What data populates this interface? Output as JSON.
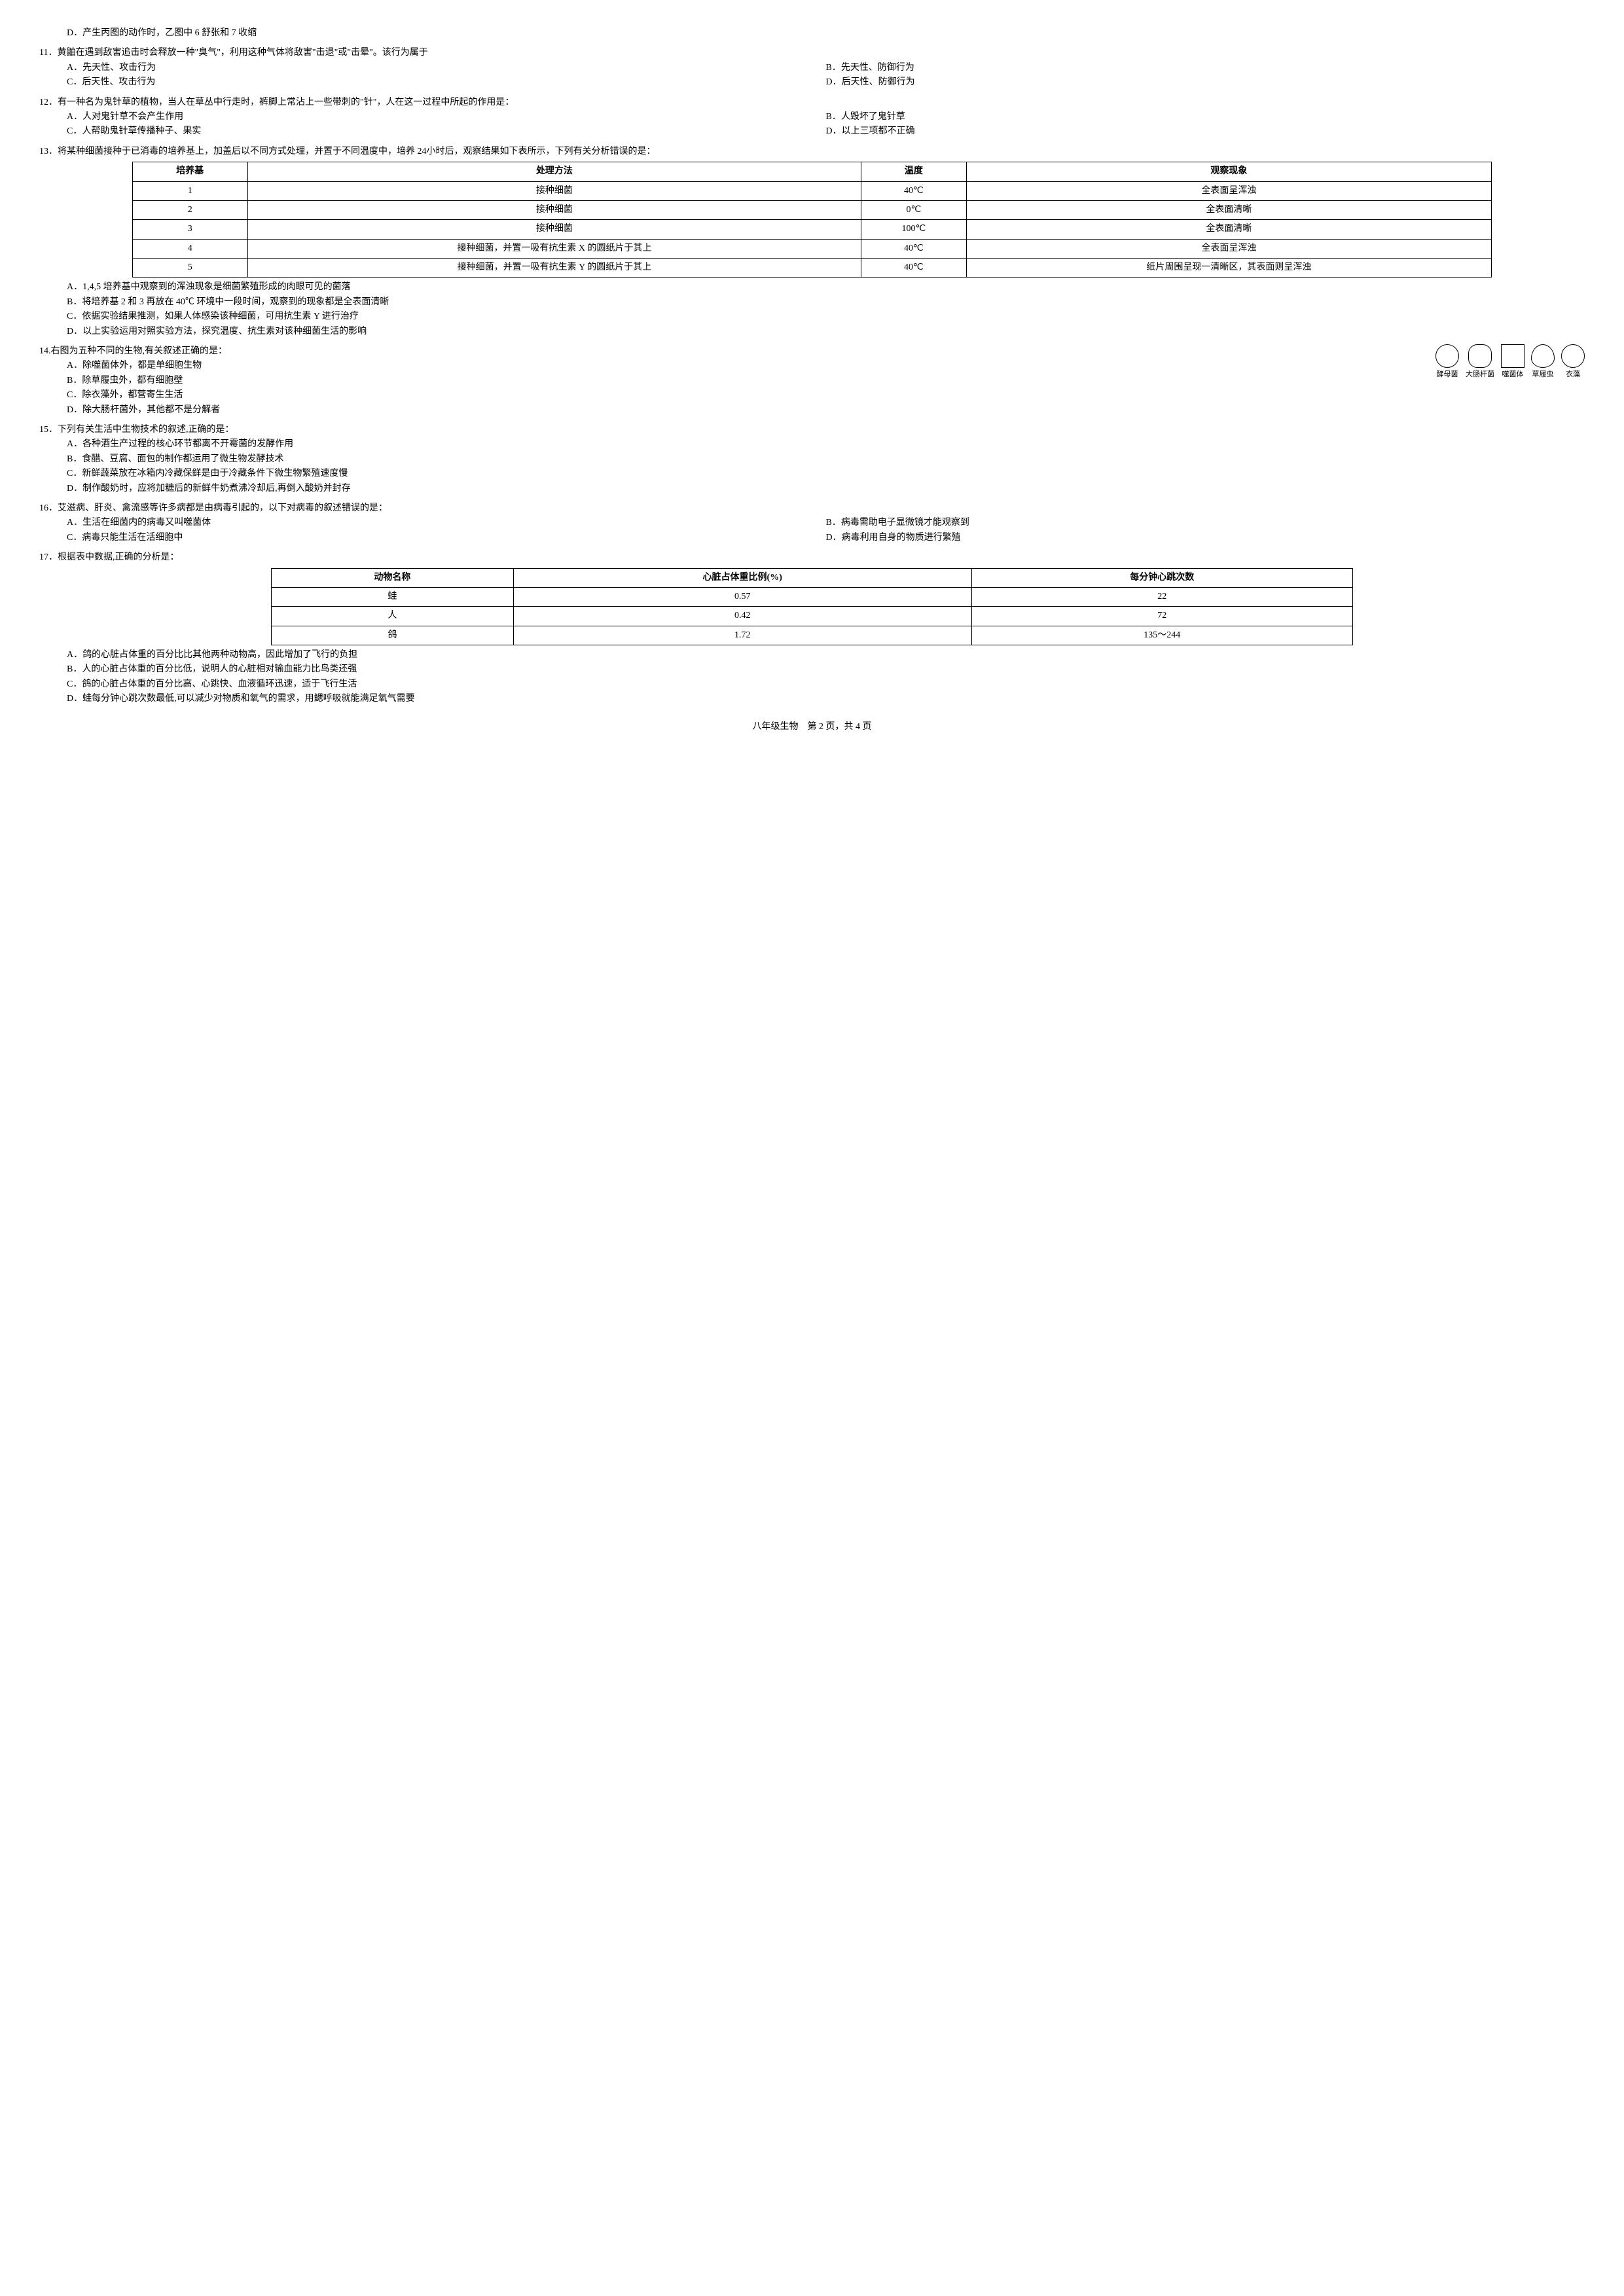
{
  "q10d": "D．产生丙图的动作时，乙图中 6 舒张和 7 收缩",
  "q11": {
    "stem": "11．黄鼬在遇到敌害追击时会释放一种\"臭气\"，利用这种气体将敌害\"击退\"或\"击晕\"。该行为属于",
    "A": "A．先天性、攻击行为",
    "B": "B．先天性、防御行为",
    "C": "C．后天性、攻击行为",
    "D": "D．后天性、防御行为"
  },
  "q12": {
    "stem": "12．有一种名为鬼针草的植物，当人在草丛中行走时，裤脚上常沾上一些带刺的\"针\"，人在这一过程中所起的作用是：",
    "A": "A．人对鬼针草不会产生作用",
    "B": "B．人毁坏了鬼针草",
    "C": "C．人帮助鬼针草传播种子、果实",
    "D": "D．以上三项都不正确"
  },
  "q13": {
    "stem": "13．将某种细菌接种于已消毒的培养基上，加盖后以不同方式处理，并置于不同温度中，培养 24小时后，观察结果如下表所示，下列有关分析错误的是：",
    "headers": [
      "培养基",
      "处理方法",
      "温度",
      "观察现象"
    ],
    "rows": [
      [
        "1",
        "接种细菌",
        "40℃",
        "全表面呈浑浊"
      ],
      [
        "2",
        "接种细菌",
        "0℃",
        "全表面清晰"
      ],
      [
        "3",
        "接种细菌",
        "100℃",
        "全表面清晰"
      ],
      [
        "4",
        "接种细菌，并置一吸有抗生素 X 的圆纸片于其上",
        "40℃",
        "全表面呈浑浊"
      ],
      [
        "5",
        "接种细菌，并置一吸有抗生素 Y 的圆纸片于其上",
        "40℃",
        "纸片周围呈现一清晰区，其表面则呈浑浊"
      ]
    ],
    "A": "A．1,4,5 培养基中观察到的浑浊现象是细菌繁殖形成的肉眼可见的菌落",
    "B": "B．将培养基 2 和 3 再放在 40℃ 环境中一段时间，观察到的现象都是全表面清晰",
    "C": "C．依据实验结果推测，如果人体感染该种细菌，可用抗生素 Y 进行治疗",
    "D": "D．以上实验运用对照实验方法，探究温度、抗生素对该种细菌生活的影响"
  },
  "q14": {
    "stem": "14.右图为五种不同的生物,有关叙述正确的是：",
    "A": "A．除噬菌体外，都是单细胞生物",
    "B": "B．除草履虫外，都有细胞壁",
    "C": "C．除衣藻外，都营寄生生活",
    "D": "D．除大肠杆菌外，其他都不是分解者",
    "labels": [
      "酵母菌",
      "大肠杆菌",
      "噬菌体",
      "草履虫",
      "衣藻"
    ]
  },
  "q15": {
    "stem": "15．下列有关生活中生物技术的叙述,正确的是：",
    "A": "A．各种酒生产过程的核心环节都离不开霉菌的发酵作用",
    "B": "B．食醋、豆腐、面包的制作都运用了微生物发酵技术",
    "C": "C．新鲜蔬菜放在冰箱内冷藏保鲜是由于冷藏条件下微生物繁殖速度慢",
    "D": "D．制作酸奶时，应将加糖后的新鲜牛奶煮沸冷却后,再倒入酸奶并封存"
  },
  "q16": {
    "stem": "16．艾滋病、肝炎、禽流感等许多病都是由病毒引起的，以下对病毒的叙述错误的是：",
    "A": "A．生活在细菌内的病毒又叫噬菌体",
    "B": "B．病毒需助电子显微镜才能观察到",
    "C": "C．病毒只能生活在活细胞中",
    "D": "D．病毒利用自身的物质进行繁殖"
  },
  "q17": {
    "stem": "17．根据表中数据,正确的分析是：",
    "headers": [
      "动物名称",
      "心脏占体重比例(%)",
      "每分钟心跳次数"
    ],
    "rows": [
      [
        "蛙",
        "0.57",
        "22"
      ],
      [
        "人",
        "0.42",
        "72"
      ],
      [
        "鸽",
        "1.72",
        "135～244"
      ]
    ],
    "A": "A．鸽的心脏占体重的百分比比其他两种动物高，因此增加了飞行的负担",
    "B": "B．人的心脏占体重的百分比低，说明人的心脏相对输血能力比鸟类还强",
    "C": "C．鸽的心脏占体重的百分比高、心跳快、血液循环迅速，适于飞行生活",
    "D": "D．蛙每分钟心跳次数最低,可以减少对物质和氧气的需求，用鳃呼吸就能满足氧气需要"
  },
  "footer": "八年级生物　第 2 页，共 4 页"
}
